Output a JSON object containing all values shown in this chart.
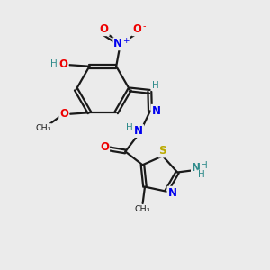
{
  "bg_color": "#ebebeb",
  "bond_color": "#1a1a1a",
  "atom_colors": {
    "C": "#1a1a1a",
    "H": "#2e8b8b",
    "N": "#0000ee",
    "O": "#ee0000",
    "S": "#bbaa00",
    "NH2": "#2e8b8b"
  }
}
